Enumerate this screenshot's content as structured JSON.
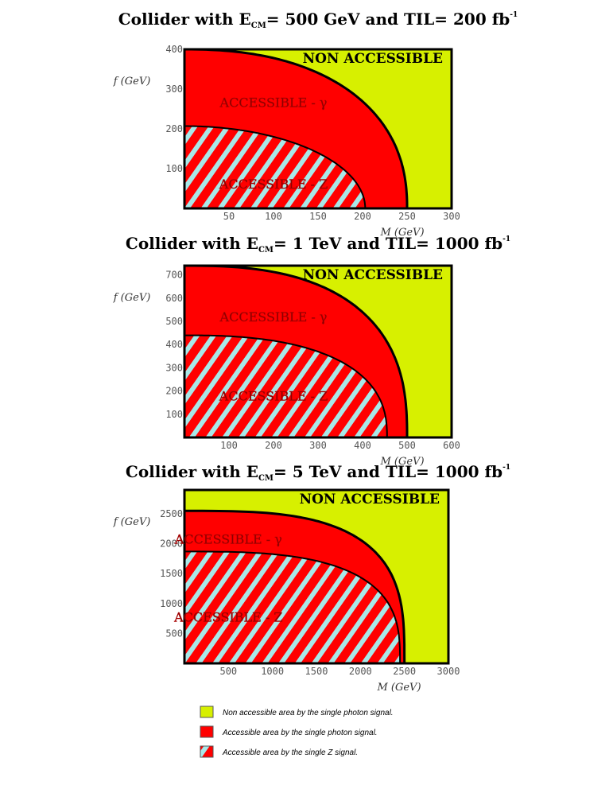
{
  "colors": {
    "non_accessible": "#d7f000",
    "accessible_photon": "#ff0000",
    "hatch": "#a8e8e8",
    "boundary": "#000000"
  },
  "chart_data": [
    {
      "type": "area",
      "title": {
        "prefix": "Collider with E",
        "sub": "CM",
        "mid": "= 500 GeV and TIL= 200 fb",
        "sup": "-1"
      },
      "xlabel": "M  (GeV)",
      "ylabel": "f  (GeV)",
      "xlim": [
        0,
        300
      ],
      "ylim": [
        0,
        400
      ],
      "xticks": [
        50,
        100,
        150,
        200,
        250,
        300
      ],
      "yticks": [
        100,
        200,
        300,
        400
      ],
      "photon_reach": {
        "M_max": 250,
        "f_max": 400,
        "shape": 2.3
      },
      "z_reach": {
        "M_max": 203,
        "f_max": 207,
        "shape": 2.0
      },
      "labels": {
        "non_accessible": "NON ACCESSIBLE",
        "photon": "ACCESSIBLE - γ",
        "z": "ACCESSIBLE - Z"
      },
      "label_pos": {
        "photon": [
          100,
          255
        ],
        "z": [
          100,
          50
        ]
      }
    },
    {
      "type": "area",
      "title": {
        "prefix": "Collider with E",
        "sub": "CM",
        "mid": "= 1 TeV and TIL= 1000 fb",
        "sup": "-1"
      },
      "xlabel": "M  (GeV)",
      "ylabel": "f  (GeV)",
      "xlim": [
        0,
        600
      ],
      "ylim": [
        0,
        740
      ],
      "xticks": [
        100,
        200,
        300,
        400,
        500,
        600
      ],
      "yticks": [
        100,
        200,
        300,
        400,
        500,
        600,
        700
      ],
      "photon_reach": {
        "M_max": 500,
        "f_max": 740,
        "shape": 2.6
      },
      "z_reach": {
        "M_max": 455,
        "f_max": 440,
        "shape": 2.5
      },
      "labels": {
        "non_accessible": "NON ACCESSIBLE",
        "photon": "ACCESSIBLE - γ",
        "z": "ACCESSIBLE - Z"
      },
      "label_pos": {
        "photon": [
          200,
          500
        ],
        "z": [
          200,
          160
        ]
      }
    },
    {
      "type": "area",
      "title": {
        "prefix": "Collider with E",
        "sub": "CM",
        "mid": "= 5 TeV and TIL= 1000 fb",
        "sup": "-1"
      },
      "xlabel": "M  (GeV)",
      "ylabel": "f  (GeV)",
      "xlim": [
        0,
        3000
      ],
      "ylim": [
        0,
        2900
      ],
      "xticks": [
        500,
        1000,
        1500,
        2000,
        2500,
        3000
      ],
      "yticks": [
        500,
        1000,
        1500,
        2000,
        2500
      ],
      "photon_reach": {
        "M_max": 2500,
        "f_max": 2550,
        "shape": 3.2
      },
      "z_reach": {
        "M_max": 2450,
        "f_max": 1870,
        "shape": 3.0
      },
      "labels": {
        "non_accessible": "NON ACCESSIBLE",
        "photon": "ACCESSIBLE - γ",
        "z": "ACCESSIBLE - Z"
      },
      "label_pos": {
        "photon": [
          500,
          2000
        ],
        "z": [
          500,
          700
        ]
      }
    }
  ],
  "legend": [
    {
      "key": "non_accessible",
      "label": "Non accessible area by the single photon signal."
    },
    {
      "key": "photon",
      "label": "Accessible area  by  the single photon signal."
    },
    {
      "key": "z",
      "label": "Accessible area  by  the single Z signal."
    }
  ]
}
